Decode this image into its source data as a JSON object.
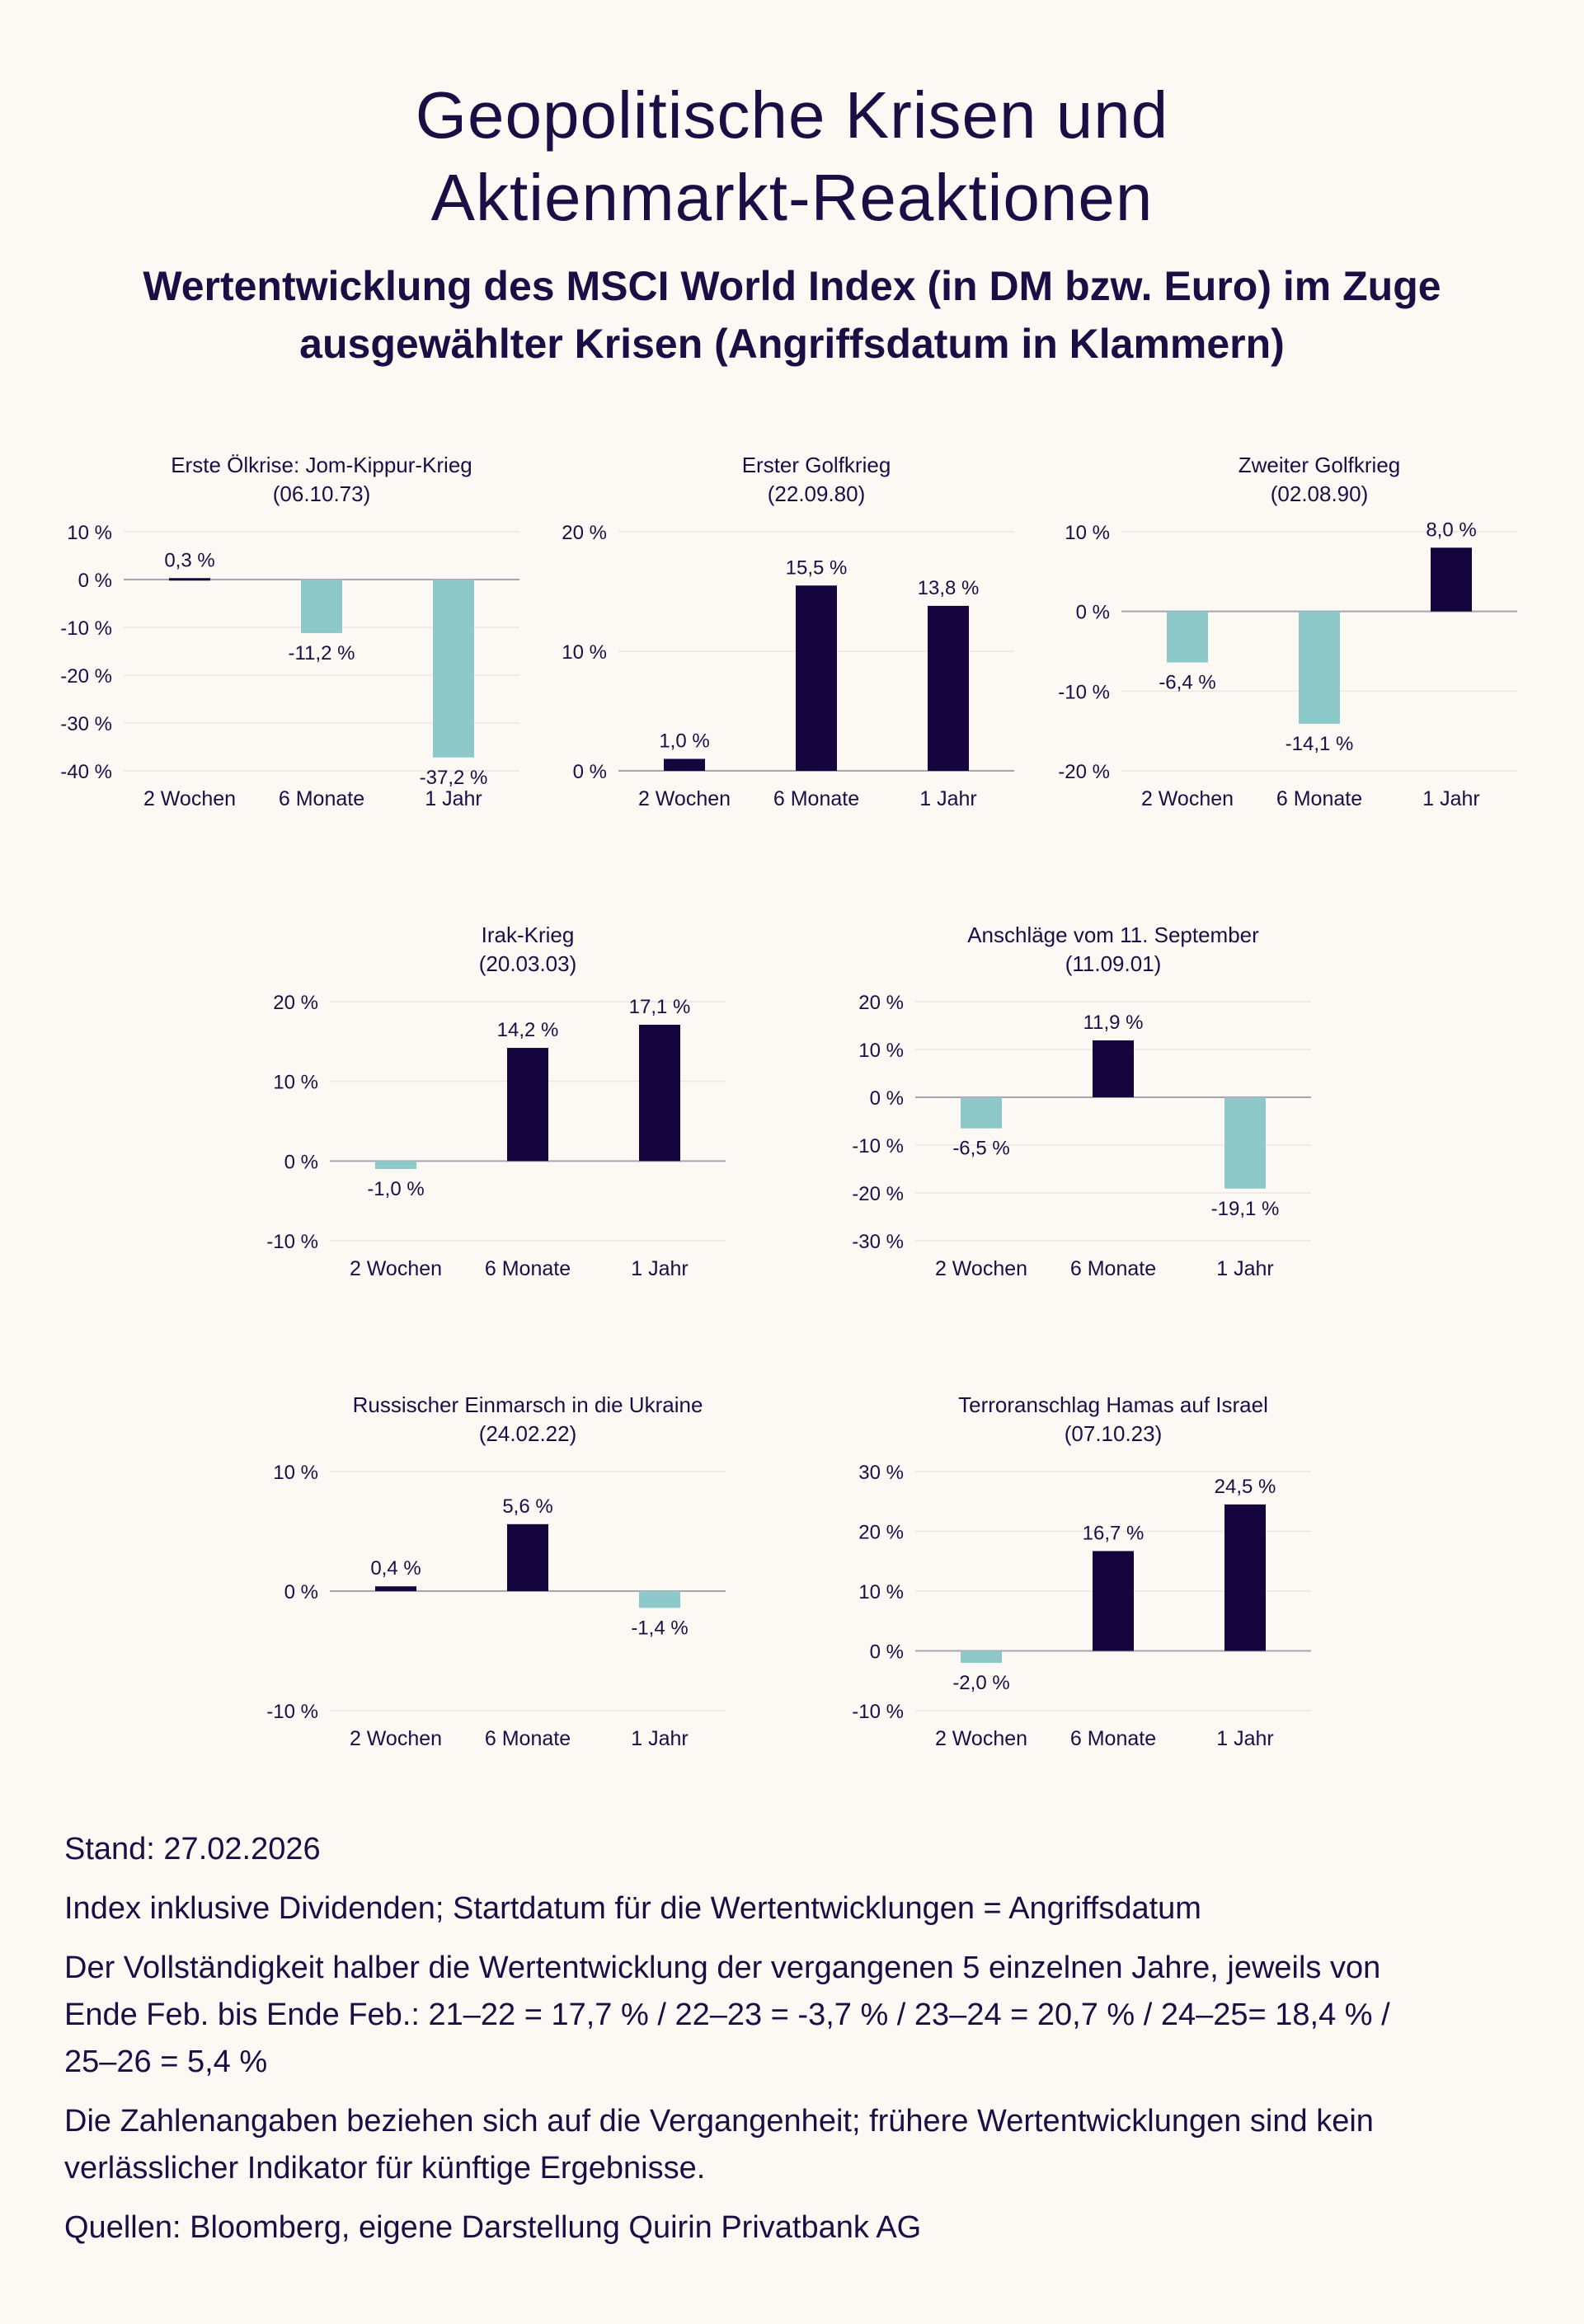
{
  "title_line1": "Geopolitische Krisen und",
  "title_line2": "Aktienmarkt-Reaktionen",
  "subtitle_line1": "Wertentwicklung des MSCI World Index (in DM bzw. Euro) im Zuge",
  "subtitle_line2": "ausgewählter Krisen (Angriffsdatum in Klammern)",
  "colors": {
    "positive": "#14053f",
    "negative": "#8ec9c9",
    "text": "#1a0e45",
    "grid": "#ece6e0",
    "axis": "#a8a3ae",
    "background": "#fcf9f5"
  },
  "chart_data": [
    {
      "type": "bar",
      "title": "Erste Ölkrise: Jom-Kippur-Krieg",
      "date": "(06.10.73)",
      "categories": [
        "2 Wochen",
        "6 Monate",
        "1 Jahr"
      ],
      "values": [
        0.3,
        -11.2,
        -37.2
      ],
      "value_labels": [
        "0,3 %",
        "-11,2 %",
        "-37,2 %"
      ],
      "ylim": [
        -40,
        10
      ],
      "ticks": [
        10,
        0,
        -10,
        -20,
        -30,
        -40
      ],
      "tick_labels": [
        "10 %",
        "0 %",
        "-10 %",
        "-20 %",
        "-30 %",
        "-40 %"
      ]
    },
    {
      "type": "bar",
      "title": "Erster Golfkrieg",
      "date": "(22.09.80)",
      "categories": [
        "2 Wochen",
        "6 Monate",
        "1 Jahr"
      ],
      "values": [
        1.0,
        15.5,
        13.8
      ],
      "value_labels": [
        "1,0 %",
        "15,5 %",
        "13,8 %"
      ],
      "ylim": [
        0,
        20
      ],
      "ticks": [
        20,
        10,
        0
      ],
      "tick_labels": [
        "20 %",
        "10 %",
        "0 %"
      ]
    },
    {
      "type": "bar",
      "title": "Zweiter Golfkrieg",
      "date": "(02.08.90)",
      "categories": [
        "2 Wochen",
        "6 Monate",
        "1 Jahr"
      ],
      "values": [
        -6.4,
        -14.1,
        8.0
      ],
      "value_labels": [
        "-6,4 %",
        "-14,1 %",
        "8,0 %"
      ],
      "ylim": [
        -20,
        10
      ],
      "ticks": [
        10,
        0,
        -10,
        -20
      ],
      "tick_labels": [
        "10 %",
        "0 %",
        "-10 %",
        "-20 %"
      ]
    },
    {
      "type": "bar",
      "title": "Irak-Krieg",
      "date": "(20.03.03)",
      "categories": [
        "2 Wochen",
        "6 Monate",
        "1 Jahr"
      ],
      "values": [
        -1.0,
        14.2,
        17.1
      ],
      "value_labels": [
        "-1,0 %",
        "14,2 %",
        "17,1 %"
      ],
      "ylim": [
        -10,
        20
      ],
      "ticks": [
        20,
        10,
        0,
        -10
      ],
      "tick_labels": [
        "20 %",
        "10 %",
        "0 %",
        "-10 %"
      ]
    },
    {
      "type": "bar",
      "title": "Anschläge vom 11. September",
      "date": "(11.09.01)",
      "categories": [
        "2 Wochen",
        "6 Monate",
        "1 Jahr"
      ],
      "values": [
        -6.5,
        11.9,
        -19.1
      ],
      "value_labels": [
        "-6,5 %",
        "11,9 %",
        "-19,1 %"
      ],
      "ylim": [
        -30,
        20
      ],
      "ticks": [
        20,
        10,
        0,
        -10,
        -20,
        -30
      ],
      "tick_labels": [
        "20 %",
        "10 %",
        "0 %",
        "-10 %",
        "-20 %",
        "-30 %"
      ]
    },
    {
      "type": "bar",
      "title": "Russischer Einmarsch in die Ukraine",
      "date": "(24.02.22)",
      "categories": [
        "2 Wochen",
        "6 Monate",
        "1 Jahr"
      ],
      "values": [
        0.4,
        5.6,
        -1.4
      ],
      "value_labels": [
        "0,4 %",
        "5,6 %",
        "-1,4 %"
      ],
      "ylim": [
        -10,
        10
      ],
      "ticks": [
        10,
        0,
        -10
      ],
      "tick_labels": [
        "10 %",
        "0 %",
        "-10 %"
      ]
    },
    {
      "type": "bar",
      "title": "Terroranschlag Hamas auf Israel",
      "date": "(07.10.23)",
      "categories": [
        "2 Wochen",
        "6 Monate",
        "1 Jahr"
      ],
      "values": [
        -2.0,
        16.7,
        24.5
      ],
      "value_labels": [
        "-2,0 %",
        "16,7 %",
        "24,5 %"
      ],
      "ylim": [
        -10,
        30
      ],
      "ticks": [
        30,
        20,
        10,
        0,
        -10
      ],
      "tick_labels": [
        "30 %",
        "20 %",
        "10 %",
        "0 %",
        "-10 %"
      ]
    }
  ],
  "footer": {
    "stand": "Stand: 27.02.2026",
    "index_note": "Index inklusive Dividenden; Startdatum für die Wertentwicklungen = Angriffsdatum",
    "completeness_line1": "Der Vollständigkeit halber die Wertentwicklung der vergangenen 5 einzelnen Jahre, jeweils von",
    "completeness_line2": "Ende Feb. bis Ende Feb.: 21–22 = 17,7 % / 22–23 = -3,7 % / 23–24 = 20,7 % / 24–25= 18,4 % /",
    "completeness_line3": "25–26 = 5,4 %",
    "disclaimer_line1": "Die Zahlenangaben beziehen sich auf die Vergangenheit; frühere Wertentwicklungen sind kein",
    "disclaimer_line2": "verlässlicher Indikator für künftige Ergebnisse.",
    "sources": "Quellen: Bloomberg, eigene Darstellung Quirin Privatbank AG"
  }
}
